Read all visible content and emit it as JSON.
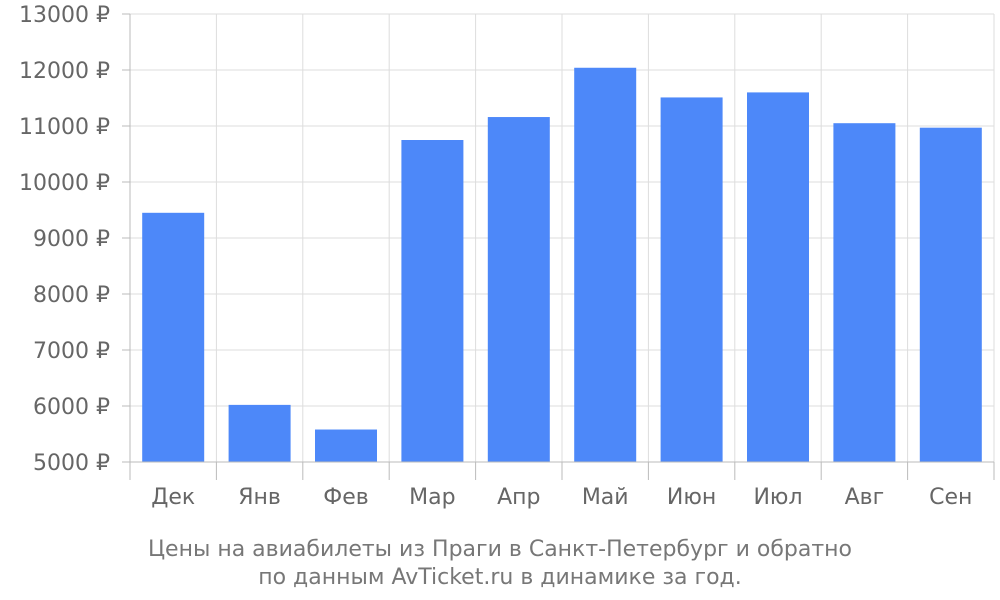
{
  "chart_data": {
    "type": "bar",
    "categories": [
      "Дек",
      "Янв",
      "Фев",
      "Мар",
      "Апр",
      "Май",
      "Июн",
      "Июл",
      "Авг",
      "Сен"
    ],
    "values": [
      9450,
      6020,
      5580,
      10750,
      11160,
      12040,
      11510,
      11600,
      11050,
      10970
    ],
    "ylim": [
      5000,
      13000
    ],
    "y_ticks": [
      "5000 ₽",
      "6000 ₽",
      "7000 ₽",
      "8000 ₽",
      "9000 ₽",
      "10000 ₽",
      "11000 ₽",
      "12000 ₽",
      "13000 ₽"
    ],
    "bar_color": "#4d88f9",
    "grid": true,
    "caption_line1": "Цены на авиабилеты из Праги в Санкт-Петербург и обратно",
    "caption_line2": "по данным AvTicket.ru в динамике за год."
  }
}
